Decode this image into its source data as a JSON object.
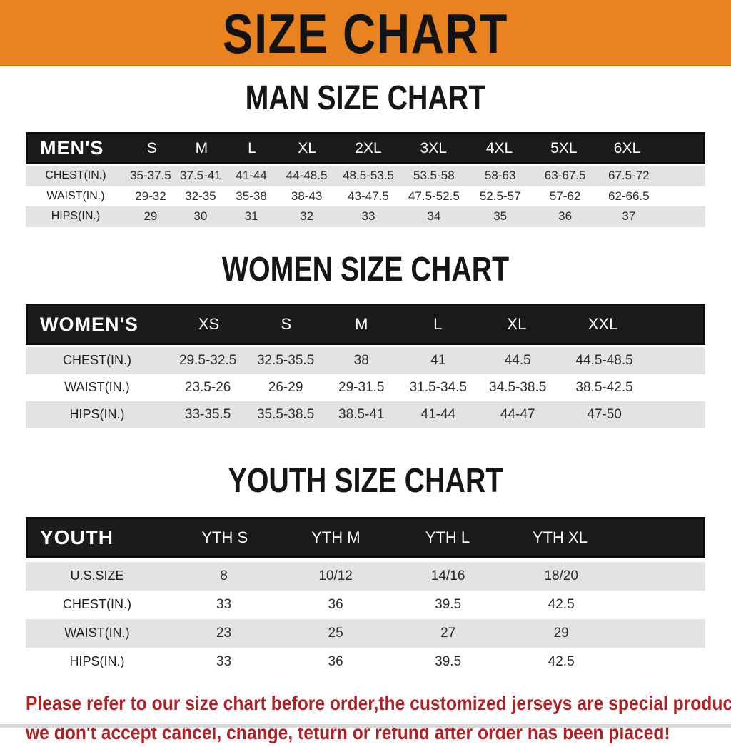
{
  "banner": {
    "title": "SIZE CHART",
    "background": "#E8831F",
    "text_color": "#131313"
  },
  "colors": {
    "header_bar": "#1b1b1b",
    "striped_row": "#E3E3E3",
    "footer_red": "#B02125"
  },
  "sections": [
    {
      "title": "MAN SIZE CHART",
      "table": {
        "header_label": "MEN'S",
        "columns": [
          "S",
          "M",
          "L",
          "XL",
          "2XL",
          "3XL",
          "4XL",
          "5XL",
          "6XL"
        ],
        "rows": [
          {
            "label": "CHEST(IN.)",
            "values": [
              "35-37.5",
              "37.5-41",
              "41-44",
              "44-48.5",
              "48.5-53.5",
              "53.5-58",
              "58-63",
              "63-67.5",
              "67.5-72"
            ]
          },
          {
            "label": "WAIST(IN.)",
            "values": [
              "29-32",
              "32-35",
              "35-38",
              "38-43",
              "43-47.5",
              "47.5-52.5",
              "52.5-57",
              "57-62",
              "62-66.5"
            ]
          },
          {
            "label": "HIPS(IN.)",
            "values": [
              "29",
              "30",
              "31",
              "32",
              "33",
              "34",
              "35",
              "36",
              "37"
            ]
          }
        ]
      }
    },
    {
      "title": "WOMEN SIZE CHART",
      "table": {
        "header_label": "WOMEN'S",
        "columns": [
          "XS",
          "S",
          "M",
          "L",
          "XL",
          "XXL"
        ],
        "rows": [
          {
            "label": "CHEST(IN.)",
            "values": [
              "29.5-32.5",
              "32.5-35.5",
              "38",
              "41",
              "44.5",
              "44.5-48.5"
            ]
          },
          {
            "label": "WAIST(IN.)",
            "values": [
              "23.5-26",
              "26-29",
              "29-31.5",
              "31.5-34.5",
              "34.5-38.5",
              "38.5-42.5"
            ]
          },
          {
            "label": "HIPS(IN.)",
            "values": [
              "33-35.5",
              "35.5-38.5",
              "38.5-41",
              "41-44",
              "44-47",
              "47-50"
            ]
          }
        ]
      }
    },
    {
      "title": "YOUTH SIZE CHART",
      "table": {
        "header_label": "YOUTH",
        "columns": [
          "YTH S",
          "YTH M",
          "YTH L",
          "YTH XL"
        ],
        "rows": [
          {
            "label": "U.S.SIZE",
            "values": [
              "8",
              "10/12",
              "14/16",
              "18/20"
            ]
          },
          {
            "label": "CHEST(IN.)",
            "values": [
              "33",
              "36",
              "39.5",
              "42.5"
            ]
          },
          {
            "label": "WAIST(IN.)",
            "values": [
              "23",
              "25",
              "27",
              "29"
            ]
          },
          {
            "label": "HIPS(IN.)",
            "values": [
              "33",
              "36",
              "39.5",
              "42.5"
            ]
          }
        ]
      }
    }
  ],
  "footer": {
    "line1": "Please refer to our size chart before order,the customized jerseys are special products,",
    "line2": "we don't accept cancel, change, teturn or refund after order has been placed!"
  }
}
